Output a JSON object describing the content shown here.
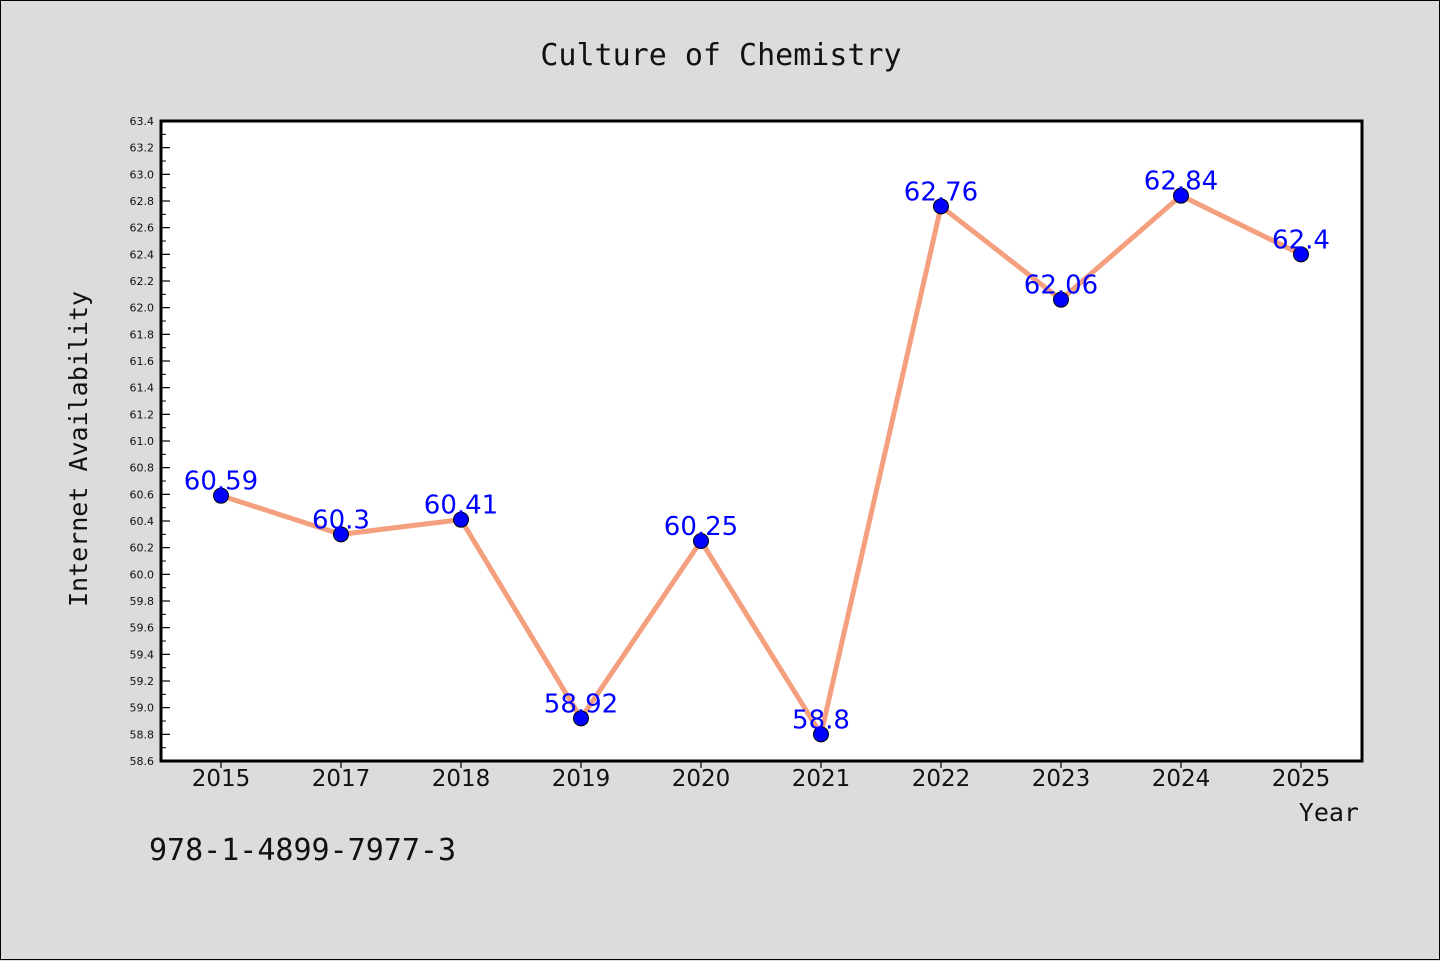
{
  "chart_data": {
    "type": "line",
    "title": "Culture of Chemistry",
    "xlabel": "Year",
    "ylabel": "Internet Availability",
    "categories": [
      "2015",
      "2017",
      "2018",
      "2019",
      "2020",
      "2021",
      "2022",
      "2023",
      "2024",
      "2025"
    ],
    "values": [
      60.59,
      60.3,
      60.41,
      58.92,
      60.25,
      58.8,
      62.76,
      62.06,
      62.84,
      62.4
    ],
    "data_labels": [
      "60.59",
      "60.3",
      "60.41",
      "58.92",
      "60.25",
      "58.8",
      "62.76",
      "62.06",
      "62.84",
      "62.4"
    ],
    "ylim": [
      58.6,
      63.4
    ],
    "y_ticks": [
      "58.6",
      "58.8",
      "59.0",
      "59.2",
      "59.4",
      "59.6",
      "59.8",
      "60.0",
      "60.2",
      "60.4",
      "60.6",
      "60.8",
      "61.0",
      "61.2",
      "61.4",
      "61.6",
      "61.8",
      "62.0",
      "62.2",
      "62.4",
      "62.6",
      "62.8",
      "63.0",
      "63.2",
      "63.4"
    ],
    "grid": false,
    "legend": "none",
    "line_color": "#f4a07f",
    "marker_color": "#0000ff",
    "label_color": "#0000ff"
  },
  "footer": {
    "isbn": "978-1-4899-7977-3"
  }
}
